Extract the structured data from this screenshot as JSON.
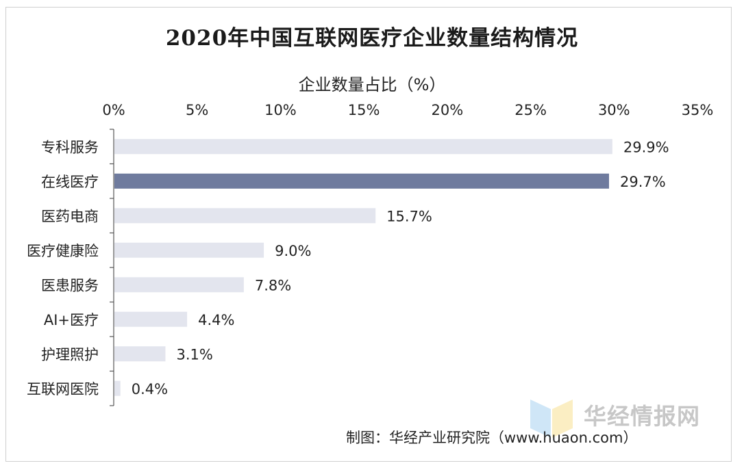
{
  "title": "2020年中国互联网医疗企业数量结构情况",
  "source": "制图：华经产业研究院（www.huaon.com）",
  "watermark": "华经情报网",
  "colors": {
    "bar": "#e3e5ee",
    "highlight": "#6f7b9e",
    "axis": "#555555",
    "text": "#222222"
  },
  "chart_data": {
    "type": "bar",
    "orientation": "horizontal",
    "title": "2020年中国互联网医疗企业数量结构情况",
    "xlabel": "企业数量占比（%）",
    "xlim": [
      0,
      35
    ],
    "xticks": [
      "0%",
      "5%",
      "10%",
      "15%",
      "20%",
      "25%",
      "30%",
      "35%"
    ],
    "x_axis_position": "top",
    "grid": false,
    "categories": [
      "专科服务",
      "在线医疗",
      "医药电商",
      "医疗健康险",
      "医患服务",
      "AI+医疗",
      "护理照护",
      "互联网医院"
    ],
    "values": [
      29.9,
      29.7,
      15.7,
      9.0,
      7.8,
      4.4,
      3.1,
      0.4
    ],
    "labels": [
      "29.9%",
      "29.7%",
      "15.7%",
      "9.0%",
      "7.8%",
      "4.4%",
      "3.1%",
      "0.4%"
    ],
    "highlight_index": 1
  }
}
